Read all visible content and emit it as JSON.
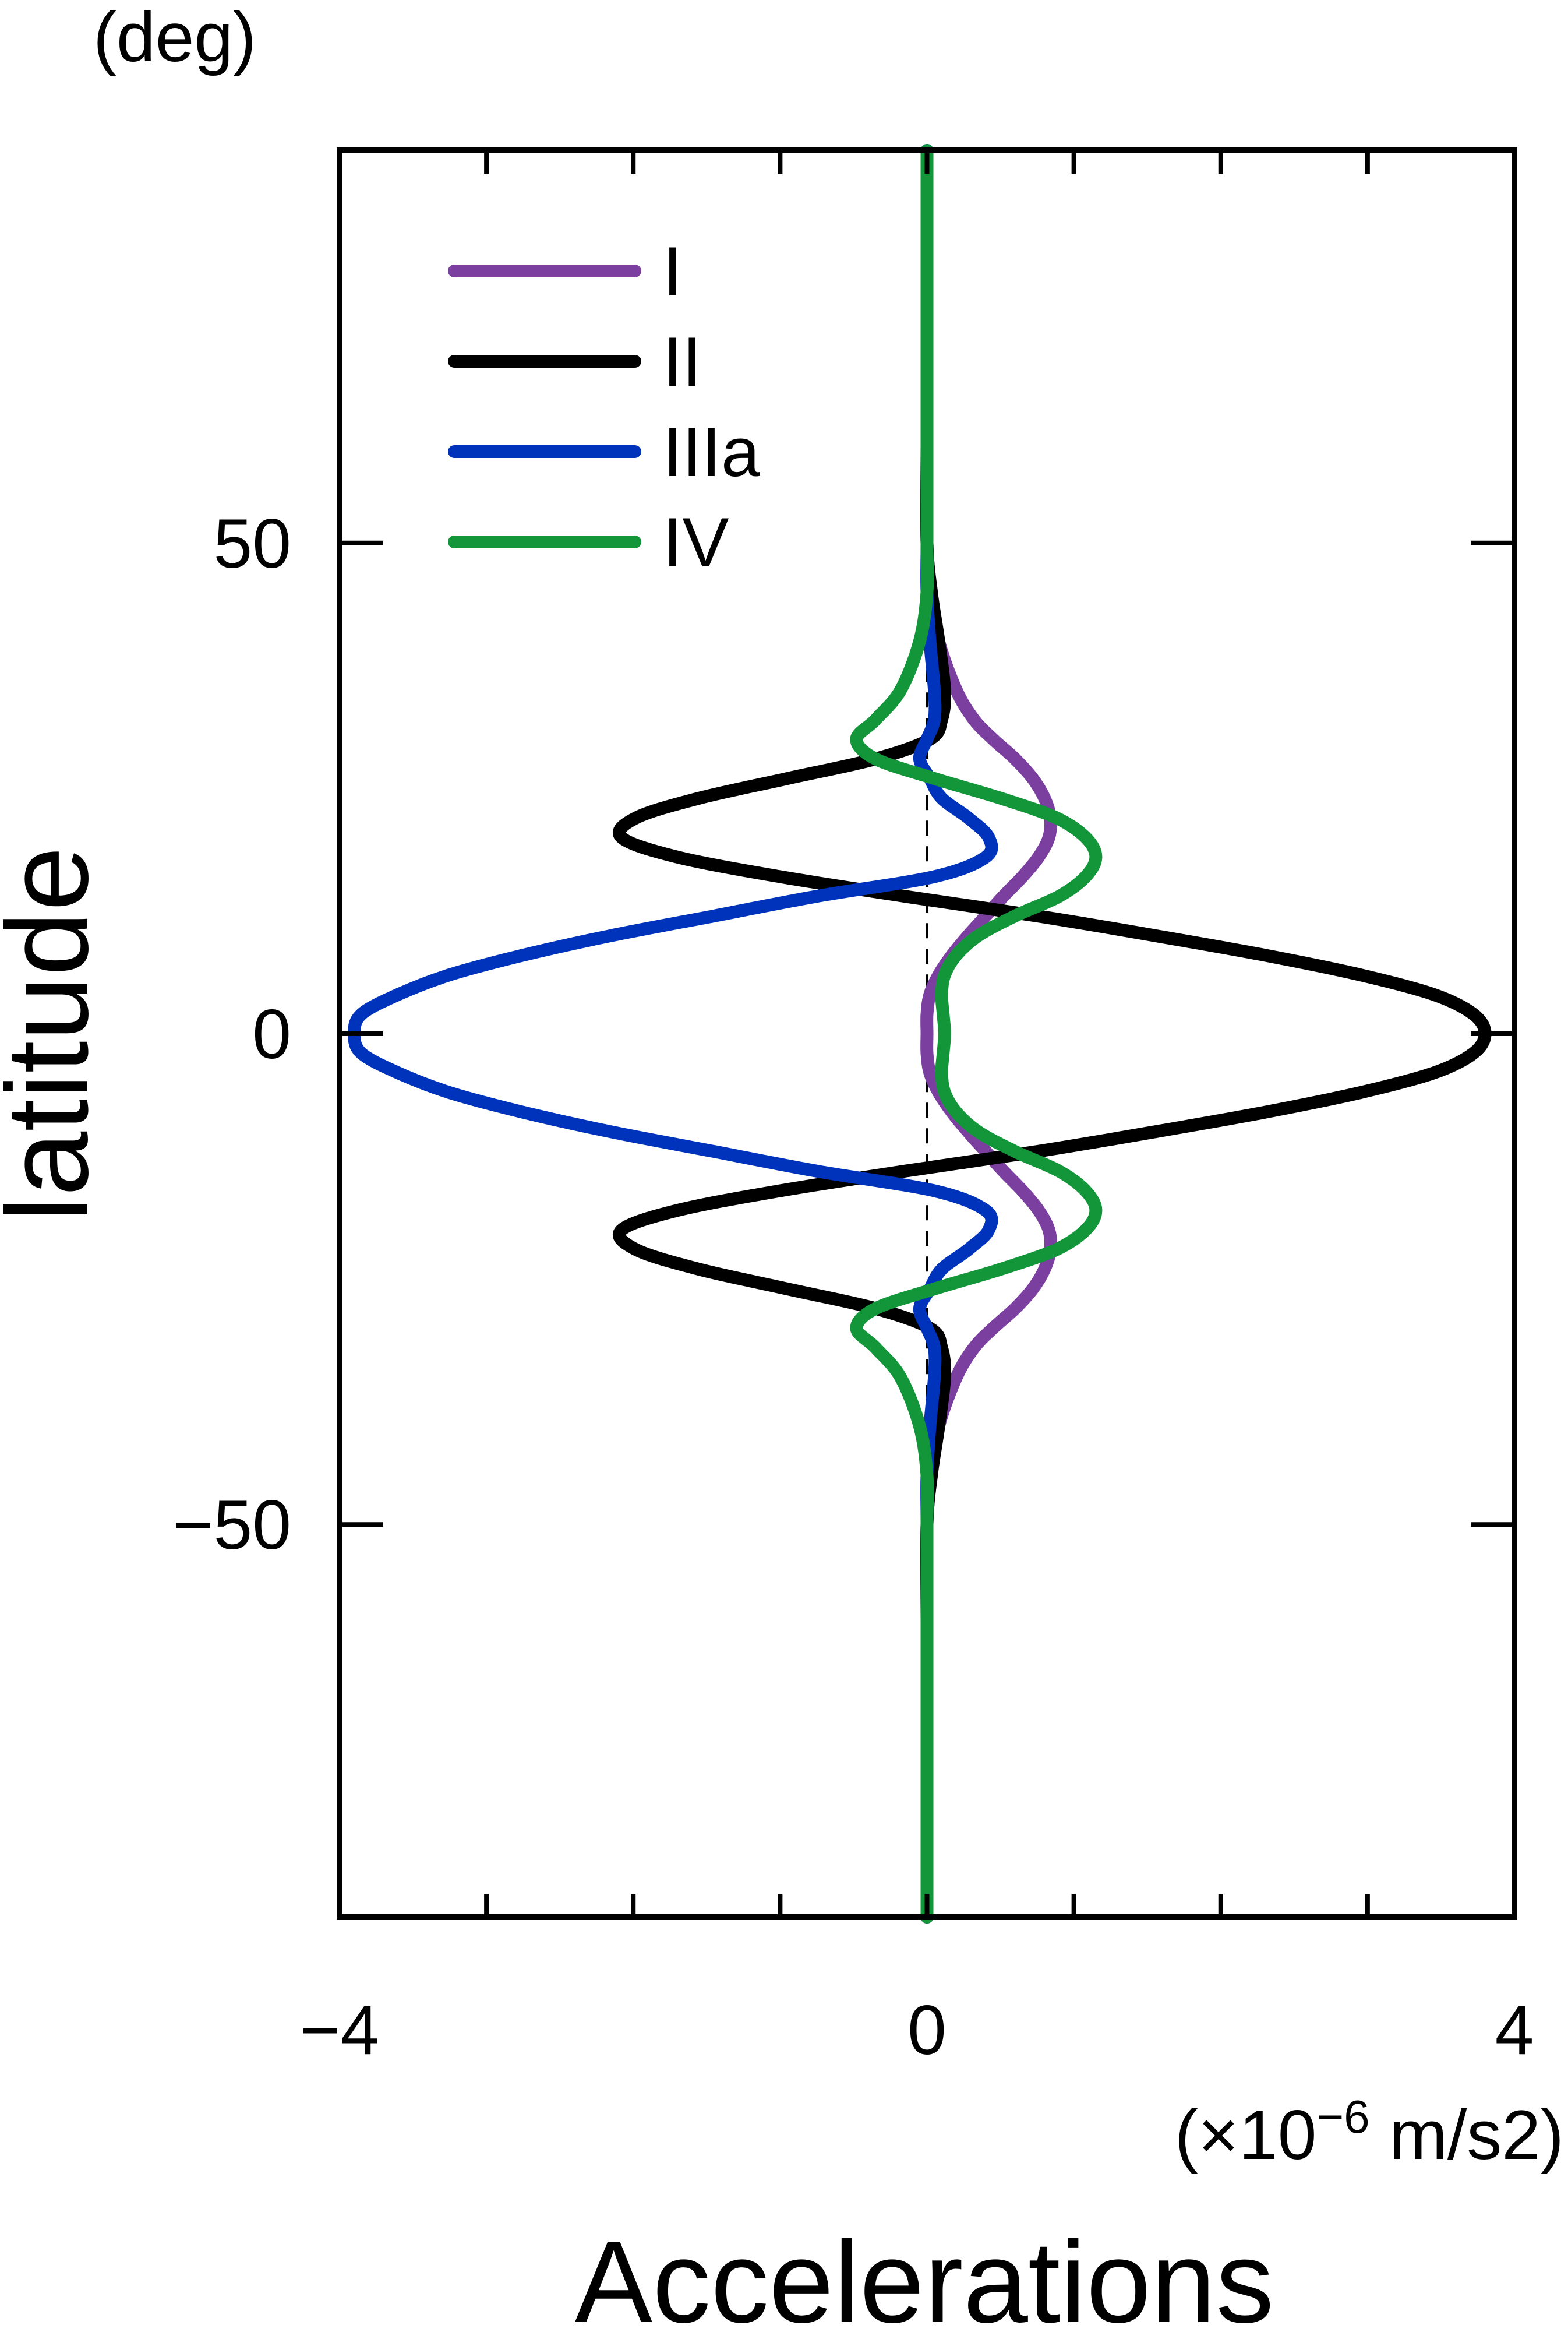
{
  "chart_data": {
    "type": "line",
    "title": "",
    "xlabel": "Accelerations",
    "ylabel": "latitude",
    "x_unit": "(×10",
    "x_unit_exp": "−6",
    "x_unit_tail": " m/s2)",
    "y_unit": "(deg)",
    "xlim": [
      -4,
      4
    ],
    "ylim": [
      -90,
      90
    ],
    "x_ticks": [
      -4,
      0,
      4
    ],
    "x_tick_labels": [
      "−4",
      "0",
      "4"
    ],
    "y_ticks": [
      -50,
      0,
      50
    ],
    "y_tick_labels": [
      "−50",
      "0",
      "50"
    ],
    "grid": false,
    "legend_position": "top-left",
    "latitude": [
      -90,
      -80,
      -70,
      -60,
      -50,
      -45,
      -40,
      -35,
      -32,
      -30,
      -28,
      -26,
      -24,
      -22,
      -20,
      -18,
      -16,
      -14,
      -12,
      -10,
      -8,
      -6,
      -4,
      -2,
      0,
      2,
      4,
      6,
      8,
      10,
      12,
      14,
      16,
      18,
      20,
      22,
      24,
      26,
      28,
      30,
      32,
      35,
      40,
      45,
      50,
      60,
      70,
      80,
      90
    ],
    "series": [
      {
        "name": "I",
        "color": "#7b3fa0",
        "values": [
          0,
          0,
          0,
          0,
          0,
          0.03,
          0.08,
          0.2,
          0.32,
          0.45,
          0.6,
          0.72,
          0.8,
          0.84,
          0.83,
          0.76,
          0.65,
          0.52,
          0.4,
          0.28,
          0.17,
          0.08,
          0.02,
          0,
          0,
          0,
          0.02,
          0.08,
          0.17,
          0.28,
          0.4,
          0.52,
          0.65,
          0.76,
          0.83,
          0.84,
          0.8,
          0.72,
          0.6,
          0.45,
          0.32,
          0.2,
          0.08,
          0.03,
          0,
          0,
          0,
          0,
          0
        ]
      },
      {
        "name": "II",
        "color": "#000000",
        "values": [
          0,
          0,
          0,
          0,
          0,
          0.03,
          0.08,
          0.12,
          0.1,
          0.02,
          -0.35,
          -0.95,
          -1.55,
          -1.98,
          -2.08,
          -1.7,
          -1.0,
          -0.15,
          0.75,
          1.55,
          2.3,
          2.95,
          3.45,
          3.72,
          3.8,
          3.72,
          3.45,
          2.95,
          2.3,
          1.55,
          0.75,
          -0.15,
          -1.0,
          -1.7,
          -2.08,
          -1.98,
          -1.55,
          -0.95,
          -0.35,
          0.02,
          0.1,
          0.12,
          0.08,
          0.03,
          0,
          0,
          0,
          0,
          0
        ]
      },
      {
        "name": "IIIa",
        "color": "#0033bb",
        "values": [
          0,
          0,
          0,
          0,
          0,
          0,
          0.02,
          0.05,
          0.05,
          0,
          -0.05,
          0.02,
          0.1,
          0.28,
          0.42,
          0.4,
          0.05,
          -0.75,
          -1.45,
          -2.15,
          -2.75,
          -3.25,
          -3.6,
          -3.85,
          -3.9,
          -3.85,
          -3.6,
          -3.25,
          -2.75,
          -2.15,
          -1.45,
          -0.75,
          0.05,
          0.4,
          0.42,
          0.28,
          0.1,
          0.02,
          -0.05,
          0,
          0.05,
          0.05,
          0.02,
          0,
          0,
          0,
          0,
          0,
          0
        ]
      },
      {
        "name": "IV",
        "color": "#129639",
        "values": [
          0,
          0,
          0,
          0,
          0,
          0,
          -0.05,
          -0.18,
          -0.35,
          -0.48,
          -0.35,
          0.05,
          0.5,
          0.88,
          1.08,
          1.15,
          1.08,
          0.9,
          0.6,
          0.35,
          0.2,
          0.12,
          0.1,
          0.11,
          0.12,
          0.11,
          0.1,
          0.12,
          0.2,
          0.35,
          0.6,
          0.9,
          1.08,
          1.15,
          1.08,
          0.88,
          0.5,
          0.05,
          -0.35,
          -0.48,
          -0.35,
          -0.18,
          -0.05,
          0,
          0,
          0,
          0,
          0,
          0
        ]
      }
    ]
  }
}
